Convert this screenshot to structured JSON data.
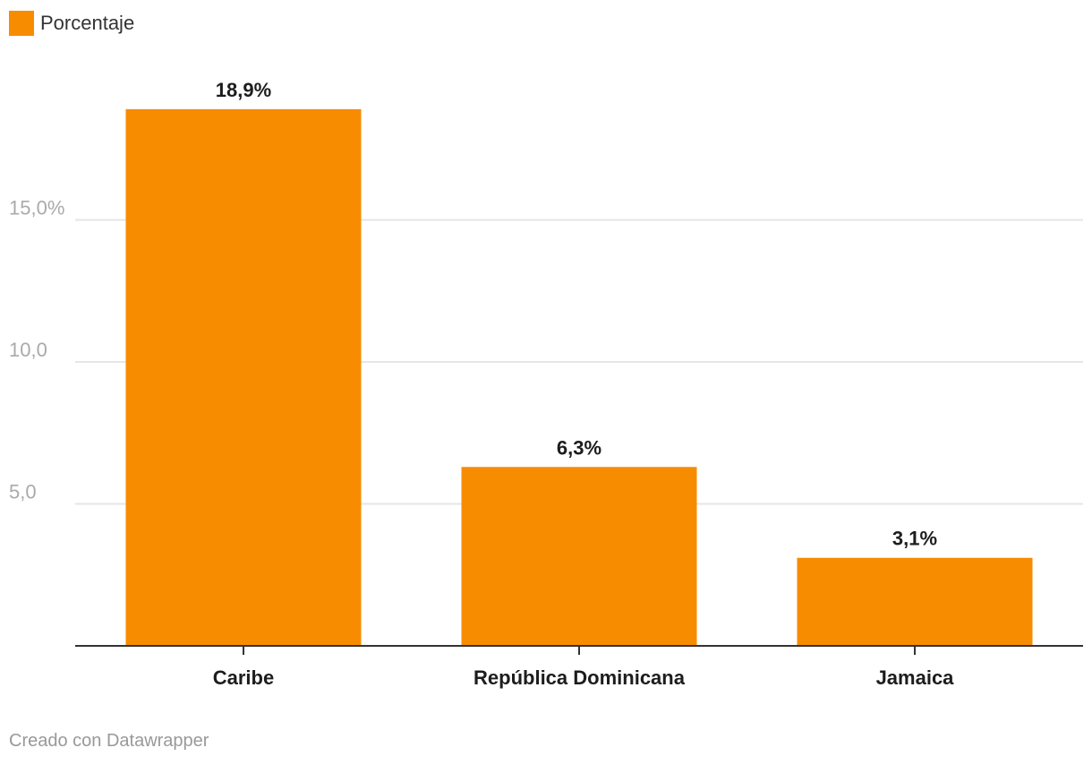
{
  "colors": {
    "bar": "#f78c00",
    "grid": "#e6e6e6",
    "axis": "#333333",
    "tick_label": "#aaaaaa",
    "value_label": "#1d1d1d",
    "category_label": "#1d1d1d"
  },
  "chart_data": {
    "type": "bar",
    "categories": [
      "Caribe",
      "República Dominicana",
      "Jamaica"
    ],
    "series": [
      {
        "name": "Porcentaje",
        "values": [
          18.9,
          6.3,
          3.1
        ],
        "value_labels": [
          "18,9%",
          "6,3%",
          "3,1%"
        ]
      }
    ],
    "y_ticks": [
      5,
      10,
      15
    ],
    "y_tick_labels": [
      "5,0",
      "10,0",
      "15,0%"
    ],
    "ylim": [
      0,
      20
    ],
    "grid": true,
    "legend_position": "top-left"
  },
  "footer": {
    "credit": "Creado con Datawrapper"
  }
}
